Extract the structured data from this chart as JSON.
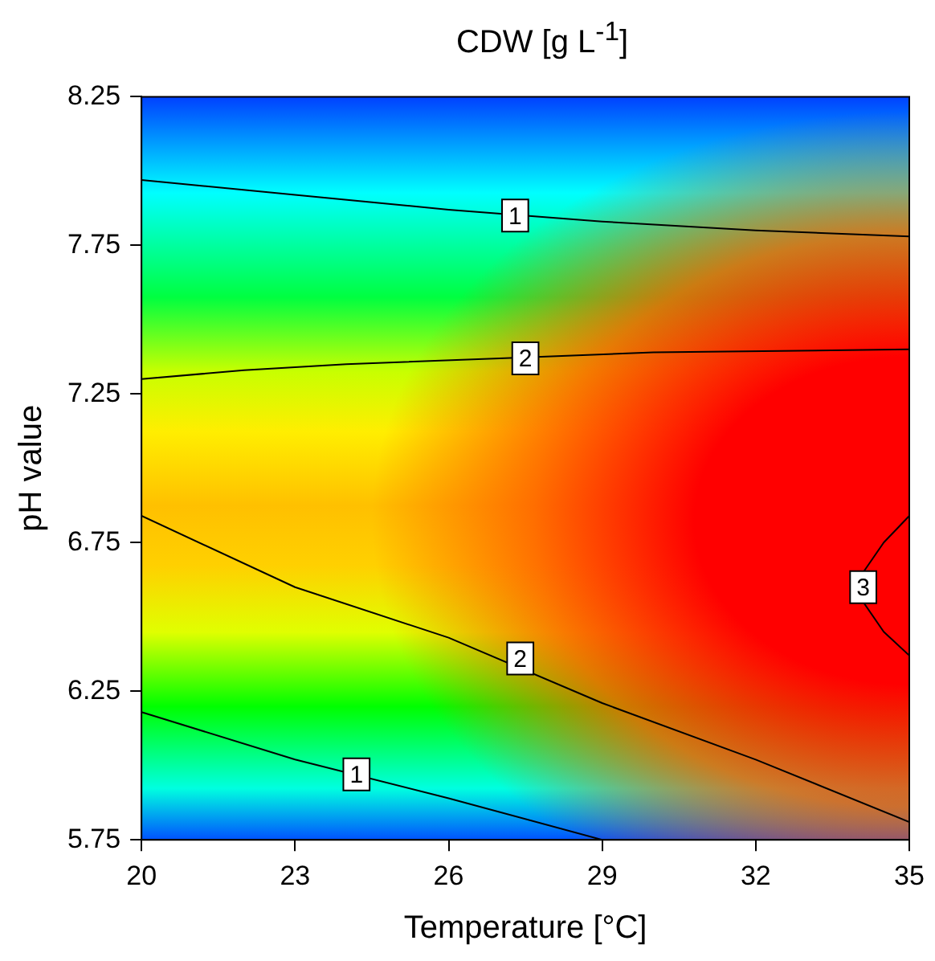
{
  "chart_data": {
    "type": "line",
    "title": "CDW [g L$^{-1}$]",
    "xlabel": "Temperature [°C]",
    "ylabel": "pH value",
    "xlim": [
      20,
      35
    ],
    "xticks": [
      20,
      23,
      26,
      29,
      32,
      35
    ],
    "ylim": [
      5.75,
      8.25
    ],
    "yticks": [
      5.75,
      6.25,
      6.75,
      7.25,
      7.75,
      8.25
    ],
    "grid": false,
    "legend": false,
    "marker": "none",
    "line_style": "solid",
    "series": [
      {
        "color": "#000000",
        "x": [
          20,
          23,
          26,
          29,
          32,
          35
        ],
        "values": [
          7.97,
          7.92,
          7.87,
          7.83,
          7.8,
          7.78
        ]
      },
      {
        "color": "#000000",
        "x": [
          20,
          22,
          24,
          27,
          30,
          35
        ],
        "values": [
          7.3,
          7.33,
          7.35,
          7.37,
          7.39,
          7.4
        ]
      },
      {
        "color": "#000000",
        "x": [
          20,
          23,
          26,
          29,
          32,
          35
        ],
        "values": [
          6.84,
          6.6,
          6.43,
          6.21,
          6.02,
          5.81
        ]
      },
      {
        "color": "#000000",
        "x": [
          20,
          23,
          26,
          29
        ],
        "values": [
          6.18,
          6.02,
          5.89,
          5.75
        ]
      },
      {
        "color": "#000000",
        "x": [
          35,
          34.5,
          34.1,
          34.1,
          34.5,
          35
        ],
        "values": [
          6.84,
          6.75,
          6.65,
          6.55,
          6.45,
          6.37
        ]
      }
    ],
    "annotations": [
      {
        "text": "1",
        "x": 27.3,
        "y": 7.85
      },
      {
        "text": "2",
        "x": 27.5,
        "y": 7.37
      },
      {
        "text": "2",
        "x": 27.4,
        "y": 6.36
      },
      {
        "text": "1",
        "x": 24.2,
        "y": 5.97
      },
      {
        "text": "3",
        "x": 34.1,
        "y": 6.6
      }
    ]
  }
}
